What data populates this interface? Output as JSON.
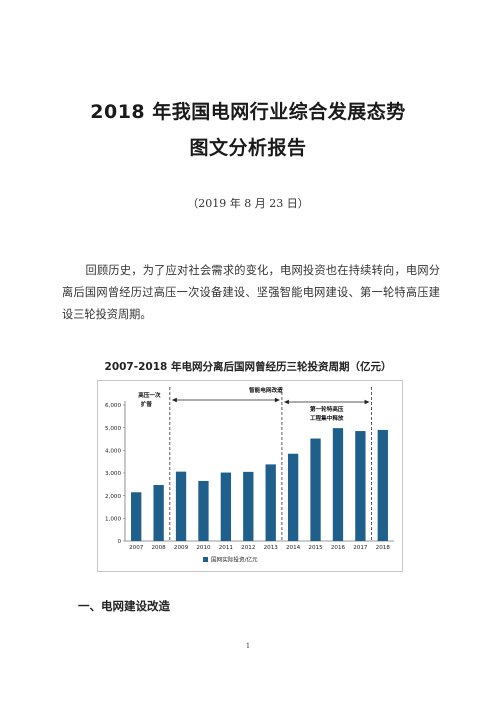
{
  "document": {
    "title_line1": "2018 年我国电网行业综合发展态势",
    "title_line2": "图文分析报告",
    "date": "（2019 年 8 月 23 日）",
    "intro_paragraph": "回顾历史，为了应对社会需求的变化，电网投资也在持续转向，电网分离后国网曾经历过高压一次设备建设、坚强智能电网建设、第一轮特高压建设三轮投资周期。",
    "section_heading": "一、电网建设改造",
    "page_number": "1"
  },
  "chart_data": {
    "type": "bar",
    "title": "2007-2018 年电网分离后国网曾经历三轮投资周期（亿元）",
    "categories": [
      "2007",
      "2008",
      "2009",
      "2010",
      "2011",
      "2012",
      "2013",
      "2014",
      "2015",
      "2016",
      "2017",
      "2018"
    ],
    "series": [
      {
        "name": "国网实际投资/亿元",
        "values": [
          2150,
          2470,
          3060,
          2650,
          3020,
          3050,
          3380,
          3850,
          4520,
          4980,
          4850,
          4900
        ]
      }
    ],
    "ylim": [
      0,
      6000
    ],
    "yticks": [
      "0",
      "1,000",
      "2,000",
      "3,000",
      "4,000",
      "5,000",
      "6,000"
    ],
    "yticks_values": [
      0,
      1000,
      2000,
      3000,
      4000,
      5000,
      6000
    ],
    "grid": false,
    "legend_position": "bottom-left",
    "bar_color": "#1f5f8b",
    "annotations": {
      "phase1": "高压一次扩普",
      "phase2": "智能电网改造",
      "phase3": "第一轮特高压工程集中释放"
    }
  }
}
